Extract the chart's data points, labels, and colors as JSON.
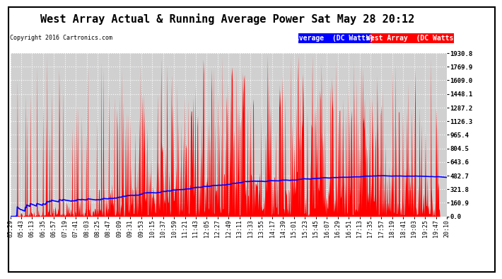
{
  "title": "West Array Actual & Running Average Power Sat May 28 20:12",
  "copyright": "Copyright 2016 Cartronics.com",
  "ylabel_right_ticks": [
    0.0,
    160.9,
    321.8,
    482.7,
    643.6,
    804.5,
    965.4,
    1126.3,
    1287.2,
    1448.1,
    1609.0,
    1769.9,
    1930.8
  ],
  "ymax": 1930.8,
  "ymin": 0.0,
  "background_color": "#ffffff",
  "plot_bg_color": "#d0d0d0",
  "grid_color": "#ffffff",
  "bar_color": "#ff0000",
  "avg_line_color": "#0000ff",
  "legend_avg_bg": "#0000ff",
  "legend_west_bg": "#ff0000",
  "x_labels": [
    "05:29",
    "05:43",
    "06:13",
    "06:35",
    "06:57",
    "07:19",
    "07:41",
    "08:03",
    "08:25",
    "08:47",
    "09:09",
    "09:31",
    "09:53",
    "10:15",
    "10:37",
    "10:59",
    "11:21",
    "11:43",
    "12:05",
    "12:27",
    "12:49",
    "13:11",
    "13:33",
    "13:55",
    "14:17",
    "14:39",
    "15:01",
    "15:23",
    "15:45",
    "16:07",
    "16:29",
    "16:51",
    "17:13",
    "17:35",
    "17:57",
    "18:19",
    "18:41",
    "19:03",
    "19:25",
    "19:47",
    "20:10"
  ],
  "title_fontsize": 11,
  "copyright_fontsize": 6,
  "tick_fontsize": 6,
  "legend_fontsize": 7
}
